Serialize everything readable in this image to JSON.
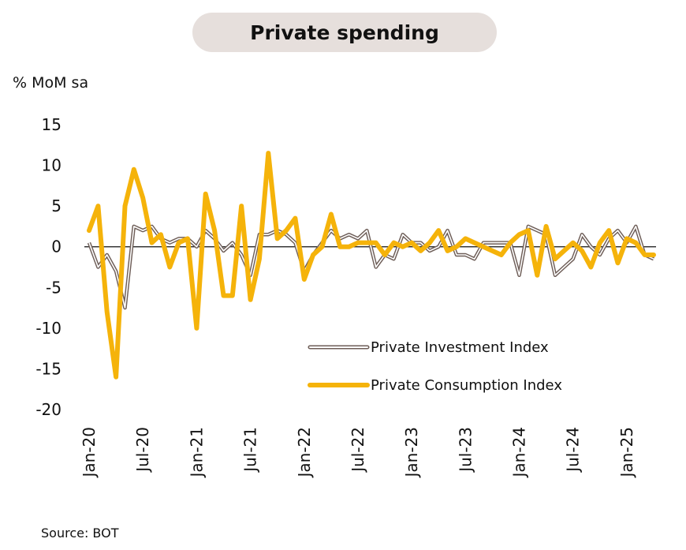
{
  "header": {
    "title": "Private spending"
  },
  "axis": {
    "unit_label": "% MoM sa"
  },
  "footer": {
    "source": "Source: BOT"
  },
  "colors": {
    "investment_outer": "#6e5e58",
    "investment_inner": "#ffffff",
    "consumption": "#f5b30a",
    "title_bg": "#e6dfdc"
  },
  "chart_data": {
    "type": "line",
    "x_start": "2020-01",
    "x_end": "2025-04",
    "x": [
      "2020-01",
      "2020-02",
      "2020-03",
      "2020-04",
      "2020-05",
      "2020-06",
      "2020-07",
      "2020-08",
      "2020-09",
      "2020-10",
      "2020-11",
      "2020-12",
      "2021-01",
      "2021-02",
      "2021-03",
      "2021-04",
      "2021-05",
      "2021-06",
      "2021-07",
      "2021-08",
      "2021-09",
      "2021-10",
      "2021-11",
      "2021-12",
      "2022-01",
      "2022-02",
      "2022-03",
      "2022-04",
      "2022-05",
      "2022-06",
      "2022-07",
      "2022-08",
      "2022-09",
      "2022-10",
      "2022-11",
      "2022-12",
      "2023-01",
      "2023-02",
      "2023-03",
      "2023-04",
      "2023-05",
      "2023-06",
      "2023-07",
      "2023-08",
      "2023-09",
      "2023-10",
      "2023-11",
      "2023-12",
      "2024-01",
      "2024-02",
      "2024-03",
      "2024-04",
      "2024-05",
      "2024-06",
      "2024-07",
      "2024-08",
      "2024-09",
      "2024-10",
      "2024-11",
      "2024-12",
      "2025-01",
      "2025-02",
      "2025-03",
      "2025-04"
    ],
    "xtick_labels": [
      "Jan-20",
      "Jul-20",
      "Jan-21",
      "Jul-21",
      "Jan-22",
      "Jul-22",
      "Jan-23",
      "Jul-23",
      "Jan-24",
      "Jul-24",
      "Jan-25"
    ],
    "xtick_index": [
      0,
      6,
      12,
      18,
      24,
      30,
      36,
      42,
      48,
      54,
      60
    ],
    "ylim": [
      -20,
      15
    ],
    "yticks": [
      15,
      10,
      5,
      0,
      -5,
      -10,
      -15,
      -20
    ],
    "ylabel": "% MoM sa",
    "grid": false,
    "legend": "bottom-right",
    "series": [
      {
        "name": "Private Investment Index",
        "values": [
          0.5,
          -2.5,
          -1.0,
          -3.0,
          -7.5,
          2.5,
          2.0,
          2.5,
          1.0,
          0.5,
          1.0,
          1.0,
          0.0,
          2.0,
          1.0,
          -0.5,
          0.5,
          -1.0,
          -3.5,
          1.5,
          1.5,
          2.0,
          1.5,
          0.5,
          -3.0,
          -1.0,
          0.5,
          2.0,
          1.0,
          1.5,
          1.0,
          2.0,
          -2.5,
          -1.0,
          -1.5,
          1.5,
          0.5,
          0.5,
          -0.5,
          0.0,
          2.0,
          -1.0,
          -1.0,
          -1.5,
          0.5,
          0.5,
          0.5,
          0.5,
          -3.5,
          2.5,
          2.0,
          1.5,
          -3.5,
          -2.5,
          -1.5,
          1.5,
          0.0,
          -1.0,
          1.0,
          2.0,
          0.5,
          2.5,
          -1.0,
          -1.5
        ]
      },
      {
        "name": "Private Consumption Index",
        "values": [
          2.0,
          5.0,
          -8.0,
          -16.0,
          5.0,
          9.5,
          6.0,
          0.5,
          1.5,
          -2.5,
          0.5,
          1.0,
          -10.0,
          6.5,
          2.0,
          -6.0,
          -6.0,
          5.0,
          -6.5,
          -1.5,
          11.5,
          1.0,
          2.0,
          3.5,
          -4.0,
          -1.0,
          0.0,
          4.0,
          0.0,
          0.0,
          0.5,
          0.5,
          0.5,
          -1.0,
          0.5,
          0.0,
          0.5,
          -0.5,
          0.5,
          2.0,
          -0.5,
          0.0,
          1.0,
          0.5,
          0.0,
          -0.5,
          -1.0,
          0.5,
          1.5,
          2.0,
          -3.5,
          2.5,
          -1.5,
          -0.5,
          0.5,
          -0.5,
          -2.5,
          0.5,
          2.0,
          -2.0,
          1.0,
          0.5,
          -1.0,
          -1.0
        ]
      }
    ]
  }
}
